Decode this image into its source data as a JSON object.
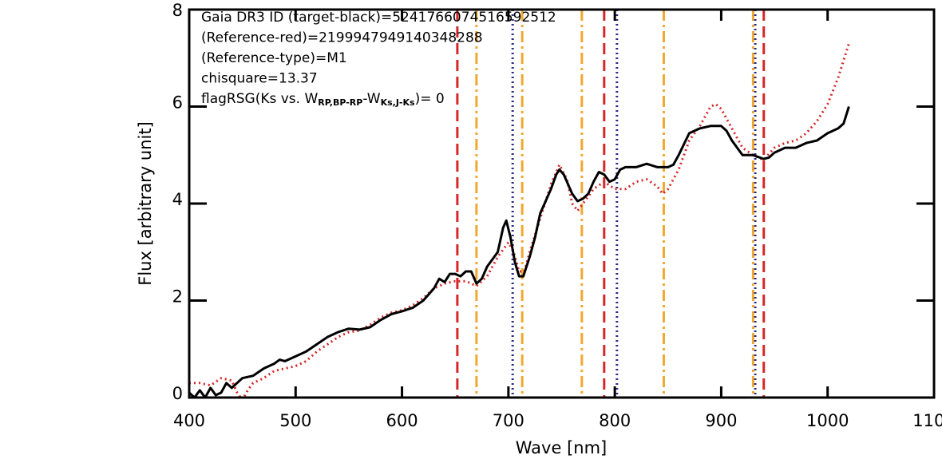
{
  "chart_data": {
    "type": "line",
    "xlabel": "Wave [nm]",
    "ylabel": "Flux [arbitrary unit]",
    "xlim": [
      400,
      1100
    ],
    "ylim": [
      0,
      8
    ],
    "xticks": [
      400,
      500,
      600,
      700,
      800,
      900,
      1000,
      1100
    ],
    "yticks": [
      0,
      2,
      4,
      6,
      8
    ],
    "annotations": [
      [
        "Gaia DR3 ID (target-black)=5241766074516592512"
      ],
      [
        "(Reference-red)=2199947949140348288"
      ],
      [
        "(Reference-type)=M1"
      ],
      [
        "chisquare=13.37"
      ],
      [
        "flagRSG(Ks vs. W",
        "RP,BP-RP",
        "-W",
        "Ks,J-Ks",
        ")= 0"
      ]
    ],
    "vlines": [
      {
        "color": "#d62728",
        "style": "dashed",
        "x": [
          652,
          790,
          940
        ]
      },
      {
        "color": "#f0a830",
        "style": "dashdot",
        "x": [
          670,
          713,
          769,
          846,
          930
        ]
      },
      {
        "color": "#2a2a8a",
        "style": "dotted",
        "x": [
          704,
          802,
          932
        ]
      }
    ],
    "series": [
      {
        "color": "#d62728",
        "style": "dotted",
        "x": [
          400,
          410,
          420,
          430,
          440,
          445,
          450,
          455,
          460,
          470,
          480,
          490,
          500,
          510,
          520,
          530,
          540,
          550,
          560,
          570,
          580,
          590,
          600,
          610,
          620,
          630,
          640,
          650,
          660,
          665,
          670,
          680,
          690,
          700,
          705,
          710,
          715,
          720,
          730,
          740,
          748,
          755,
          760,
          765,
          770,
          780,
          790,
          800,
          810,
          820,
          830,
          840,
          845,
          850,
          860,
          870,
          880,
          890,
          895,
          900,
          910,
          920,
          930,
          940,
          950,
          960,
          970,
          980,
          990,
          1000,
          1010,
          1020
        ],
        "values": [
          0.3,
          0.3,
          0.25,
          0.4,
          0.35,
          0.1,
          -0.05,
          0.15,
          0.3,
          0.4,
          0.55,
          0.6,
          0.65,
          0.75,
          0.95,
          1.1,
          1.25,
          1.35,
          1.38,
          1.5,
          1.65,
          1.75,
          1.8,
          1.9,
          2.05,
          2.25,
          2.35,
          2.4,
          2.4,
          2.35,
          2.3,
          2.5,
          2.9,
          3.2,
          3.0,
          2.6,
          2.6,
          3.0,
          3.7,
          4.4,
          4.8,
          4.5,
          4.0,
          3.85,
          4.0,
          4.3,
          4.45,
          4.3,
          4.3,
          4.45,
          4.5,
          4.35,
          4.2,
          4.3,
          4.7,
          5.3,
          5.6,
          6.0,
          6.05,
          5.95,
          5.55,
          5.15,
          5.0,
          4.9,
          5.15,
          5.25,
          5.3,
          5.45,
          5.7,
          6.05,
          6.6,
          7.3
        ]
      },
      {
        "color": "#000000",
        "style": "solid",
        "x": [
          400,
          405,
          410,
          415,
          420,
          425,
          430,
          435,
          440,
          450,
          460,
          470,
          480,
          485,
          490,
          500,
          510,
          520,
          530,
          540,
          550,
          560,
          570,
          580,
          590,
          600,
          610,
          620,
          630,
          635,
          640,
          645,
          650,
          655,
          660,
          665,
          670,
          675,
          680,
          690,
          695,
          698,
          702,
          706,
          710,
          714,
          720,
          725,
          730,
          740,
          745,
          748,
          752,
          760,
          765,
          770,
          775,
          780,
          785,
          790,
          795,
          800,
          805,
          810,
          820,
          830,
          840,
          850,
          855,
          860,
          870,
          880,
          890,
          900,
          905,
          910,
          920,
          930,
          940,
          945,
          950,
          960,
          970,
          980,
          990,
          1000,
          1010,
          1015,
          1020
        ],
        "values": [
          0.1,
          0.0,
          0.15,
          0.0,
          0.2,
          0.05,
          0.1,
          0.3,
          0.2,
          0.4,
          0.45,
          0.6,
          0.7,
          0.78,
          0.75,
          0.85,
          0.95,
          1.1,
          1.25,
          1.35,
          1.42,
          1.4,
          1.45,
          1.6,
          1.72,
          1.78,
          1.85,
          2.0,
          2.25,
          2.45,
          2.38,
          2.55,
          2.55,
          2.5,
          2.6,
          2.6,
          2.35,
          2.45,
          2.7,
          3.0,
          3.5,
          3.65,
          3.3,
          2.8,
          2.5,
          2.5,
          2.9,
          3.3,
          3.8,
          4.3,
          4.6,
          4.7,
          4.6,
          4.2,
          4.05,
          4.1,
          4.2,
          4.45,
          4.65,
          4.6,
          4.45,
          4.5,
          4.7,
          4.75,
          4.75,
          4.82,
          4.75,
          4.75,
          4.8,
          5.0,
          5.45,
          5.55,
          5.6,
          5.6,
          5.5,
          5.3,
          5.0,
          5.0,
          4.92,
          4.95,
          5.05,
          5.15,
          5.15,
          5.25,
          5.3,
          5.45,
          5.55,
          5.65,
          6.0
        ]
      }
    ]
  }
}
